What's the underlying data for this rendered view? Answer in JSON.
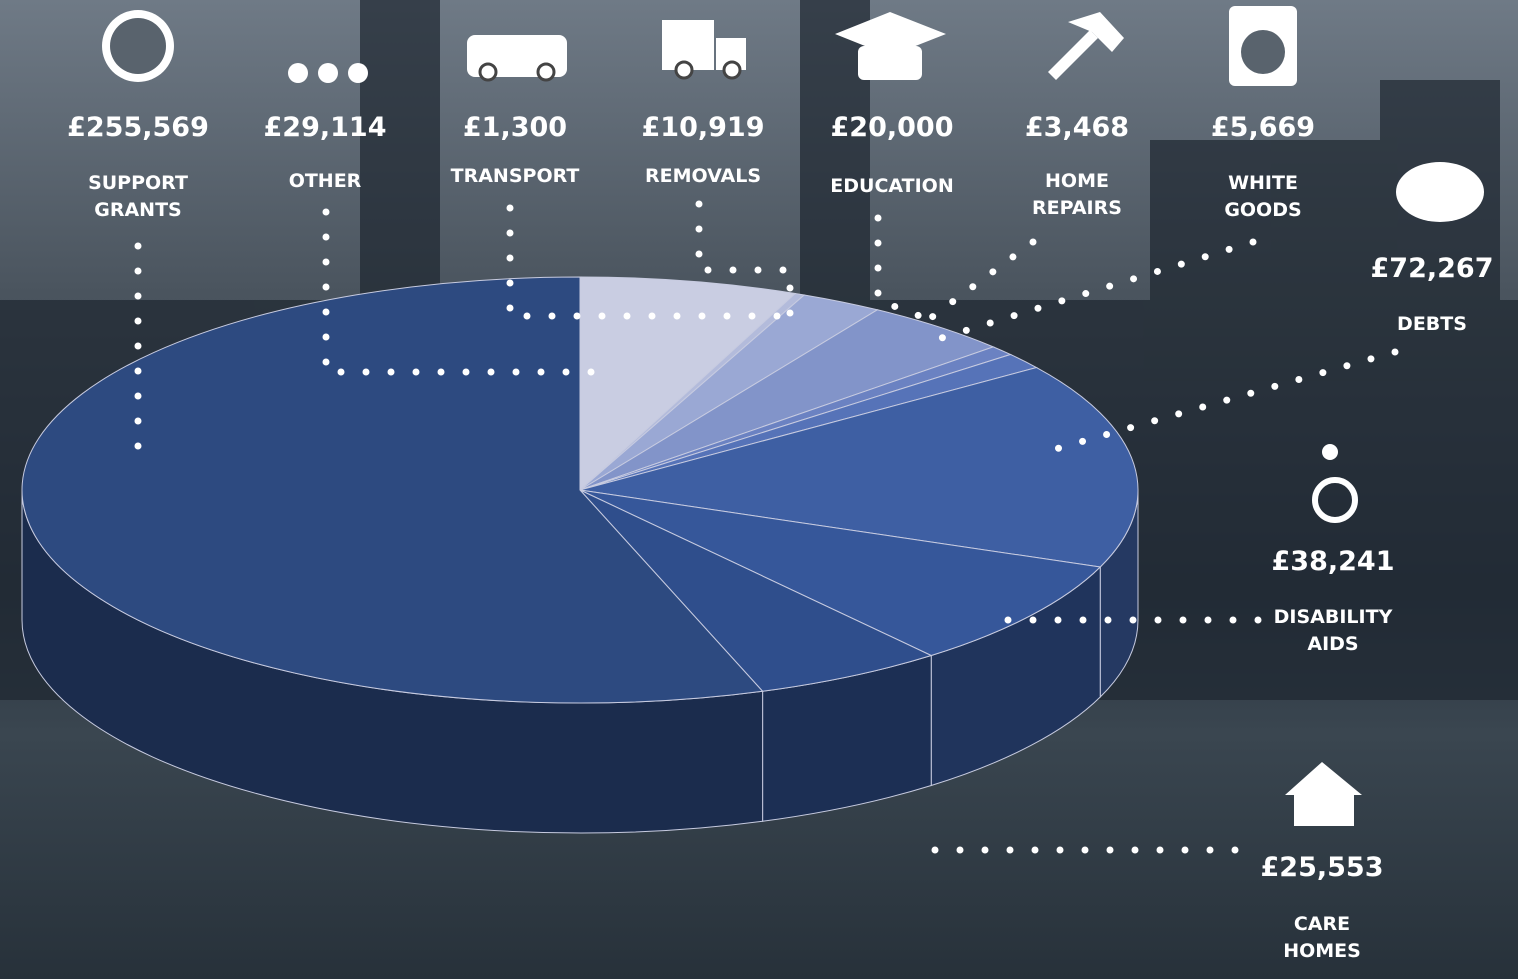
{
  "chart_data": {
    "type": "pie3d",
    "categories": [
      "OTHER",
      "TRANSPORT",
      "REMOVALS",
      "EDUCATION",
      "HOME REPAIRS",
      "WHITE GOODS",
      "DEBTS",
      "DISABILITY AIDS",
      "CARE HOMES",
      "SUPPORT GRANTS"
    ],
    "values": [
      29114,
      1300,
      10919,
      20000,
      3468,
      5669,
      72267,
      38241,
      25553,
      255569
    ],
    "value_labels": [
      "£29,114",
      "£1,300",
      "£10,919",
      "£20,000",
      "£3,468",
      "£5,669",
      "£72,267",
      "£38,241",
      "£25,553",
      "£255,569"
    ],
    "colors": [
      "#c9cde2",
      "#b3bbdb",
      "#9aa8d4",
      "#8294c9",
      "#6b82c2",
      "#5673b8",
      "#3e5fa3",
      "#36579a",
      "#2f4e8c",
      "#2d4a80"
    ]
  }
}
